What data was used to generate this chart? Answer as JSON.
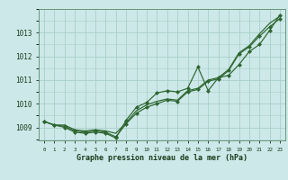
{
  "title": "Graphe pression niveau de la mer (hPa)",
  "background_color": "#cde8e8",
  "grid_color": "#a8cfc8",
  "line_color": "#2d6630",
  "series1": [
    1009.25,
    1009.1,
    1009.1,
    1008.9,
    1008.85,
    1008.9,
    1008.85,
    1008.75,
    1009.2,
    1009.7,
    1009.95,
    1010.1,
    1010.2,
    1010.15,
    1010.55,
    1010.65,
    1011.0,
    1011.1,
    1011.45,
    1012.15,
    1012.45,
    1012.95,
    1013.4,
    1013.7
  ],
  "series2": [
    1009.25,
    1009.1,
    1009.05,
    1008.85,
    1008.8,
    1008.85,
    1008.8,
    1008.6,
    1009.15,
    1009.6,
    1009.85,
    1010.0,
    1010.15,
    1010.1,
    1010.5,
    1010.6,
    1010.95,
    1011.05,
    1011.4,
    1012.1,
    1012.4,
    1012.85,
    1013.25,
    1013.6
  ],
  "series3_x": [
    0,
    1,
    2,
    3,
    4,
    5,
    6,
    7,
    8,
    9,
    10,
    11,
    12,
    13,
    14,
    15,
    16,
    17,
    18,
    19,
    20,
    21,
    22,
    23
  ],
  "series3": [
    1009.25,
    1009.1,
    1009.0,
    1008.8,
    1008.75,
    1008.8,
    1008.75,
    1008.55,
    1009.3,
    1009.85,
    1010.05,
    1010.45,
    1010.55,
    1010.5,
    1010.65,
    1011.55,
    1010.55,
    1011.1,
    1011.2,
    1011.65,
    1012.2,
    1012.5,
    1013.1,
    1013.75
  ],
  "ylim_min": 1008.45,
  "ylim_max": 1014.0,
  "yticks": [
    1009,
    1010,
    1011,
    1012,
    1013
  ],
  "xticks": [
    0,
    1,
    2,
    3,
    4,
    5,
    6,
    7,
    8,
    9,
    10,
    11,
    12,
    13,
    14,
    15,
    16,
    17,
    18,
    19,
    20,
    21,
    22,
    23
  ],
  "x_labels": [
    "0",
    "1",
    "2",
    "3",
    "4",
    "5",
    "6",
    "7",
    "8",
    "9",
    "10",
    "11",
    "12",
    "13",
    "14",
    "15",
    "16",
    "17",
    "18",
    "19",
    "20",
    "21",
    "22",
    "23"
  ]
}
